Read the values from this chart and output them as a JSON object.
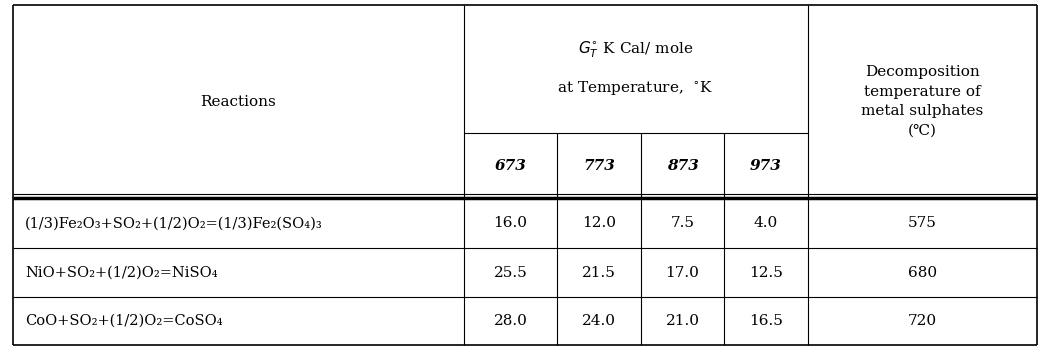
{
  "col_header_reactions": "Reactions",
  "col_header_main_line1": "$G_T^{\\circ}$ K Cal/ mole",
  "col_header_main_line2": "at Temperature,  $^{\\circ}$K",
  "col_header_temps": [
    "673",
    "773",
    "873",
    "973"
  ],
  "col_header_decomp": "Decomposition\ntemperature of\nmetal sulphates\n(℃)",
  "reactions": [
    "(1/3)Fe₂O₃+SO₂+(1/2)O₂=(1/3)Fe₂(SO₄)₃",
    "NiO+SO₂+(1/2)O₂=NiSO₄",
    "CoO+SO₂+(1/2)O₂=CoSO₄"
  ],
  "values": [
    [
      "16.0",
      "12.0",
      "7.5",
      "4.0"
    ],
    [
      "25.5",
      "21.5",
      "17.0",
      "12.5"
    ],
    [
      "28.0",
      "24.0",
      "21.0",
      "16.5"
    ]
  ],
  "decomp_temps": [
    "575",
    "680",
    "720"
  ],
  "bg_color": "#ffffff",
  "border_color": "#000000",
  "text_color": "#000000",
  "font_size": 11.0,
  "fig_width": 10.42,
  "fig_height": 3.49,
  "dpi": 100,
  "col_boundaries": [
    0.012,
    0.445,
    0.535,
    0.615,
    0.695,
    0.775,
    0.995
  ],
  "row_boundaries": [
    0.985,
    0.618,
    0.432,
    0.288,
    0.148,
    0.012
  ]
}
